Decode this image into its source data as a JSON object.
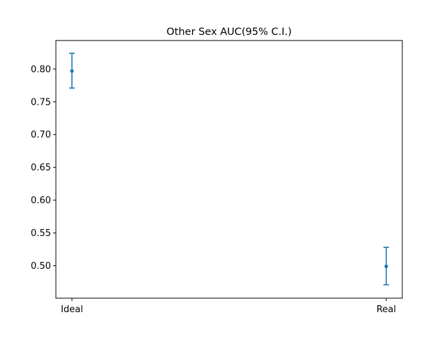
{
  "chart_data": {
    "type": "scatter",
    "title": "Other Sex AUC(95% C.I.)",
    "xlabel": "",
    "ylabel": "",
    "categories": [
      "Ideal",
      "Real"
    ],
    "points": [
      {
        "x": "Ideal",
        "y": 0.797,
        "ci_low": 0.771,
        "ci_high": 0.824
      },
      {
        "x": "Real",
        "y": 0.499,
        "ci_low": 0.471,
        "ci_high": 0.528
      }
    ],
    "ylim": [
      0.4505,
      0.8435
    ],
    "yticks": [
      0.5,
      0.55,
      0.6,
      0.65,
      0.7,
      0.75,
      0.8
    ],
    "ytick_labels": [
      "0.50",
      "0.55",
      "0.60",
      "0.65",
      "0.70",
      "0.75",
      "0.80"
    ],
    "grid": false,
    "colors": {
      "series": "#1f77b4",
      "axes": "#000000",
      "background": "#ffffff"
    }
  }
}
